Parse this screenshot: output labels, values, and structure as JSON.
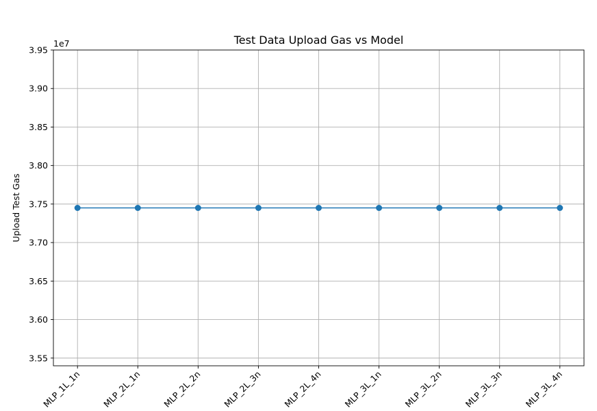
{
  "chart_data": {
    "type": "line",
    "title": "Test Data Upload Gas vs Model",
    "xlabel": "",
    "ylabel": "Upload Test Gas",
    "offset_label": "1e7",
    "categories": [
      "MLP_1L_1n",
      "MLP_2L_1n",
      "MLP_2L_2n",
      "MLP_2L_3n",
      "MLP_2L_4n",
      "MLP_3L_1n",
      "MLP_3L_2n",
      "MLP_3L_3n",
      "MLP_3L_4n"
    ],
    "series": [
      {
        "values": [
          37450000,
          37450000,
          37450000,
          37450000,
          37450000,
          37450000,
          37450000,
          37450000,
          37450000
        ]
      }
    ],
    "ylim": [
      35400000,
      39500000
    ],
    "yticks": [
      35500000,
      36000000,
      36500000,
      37000000,
      37500000,
      38000000,
      38500000,
      39000000,
      39500000
    ],
    "ytick_labels": [
      "3.55",
      "3.60",
      "3.65",
      "3.70",
      "3.75",
      "3.80",
      "3.85",
      "3.90",
      "3.95"
    ],
    "grid": true,
    "line_color": "#1f77b4",
    "marker": "circle"
  }
}
